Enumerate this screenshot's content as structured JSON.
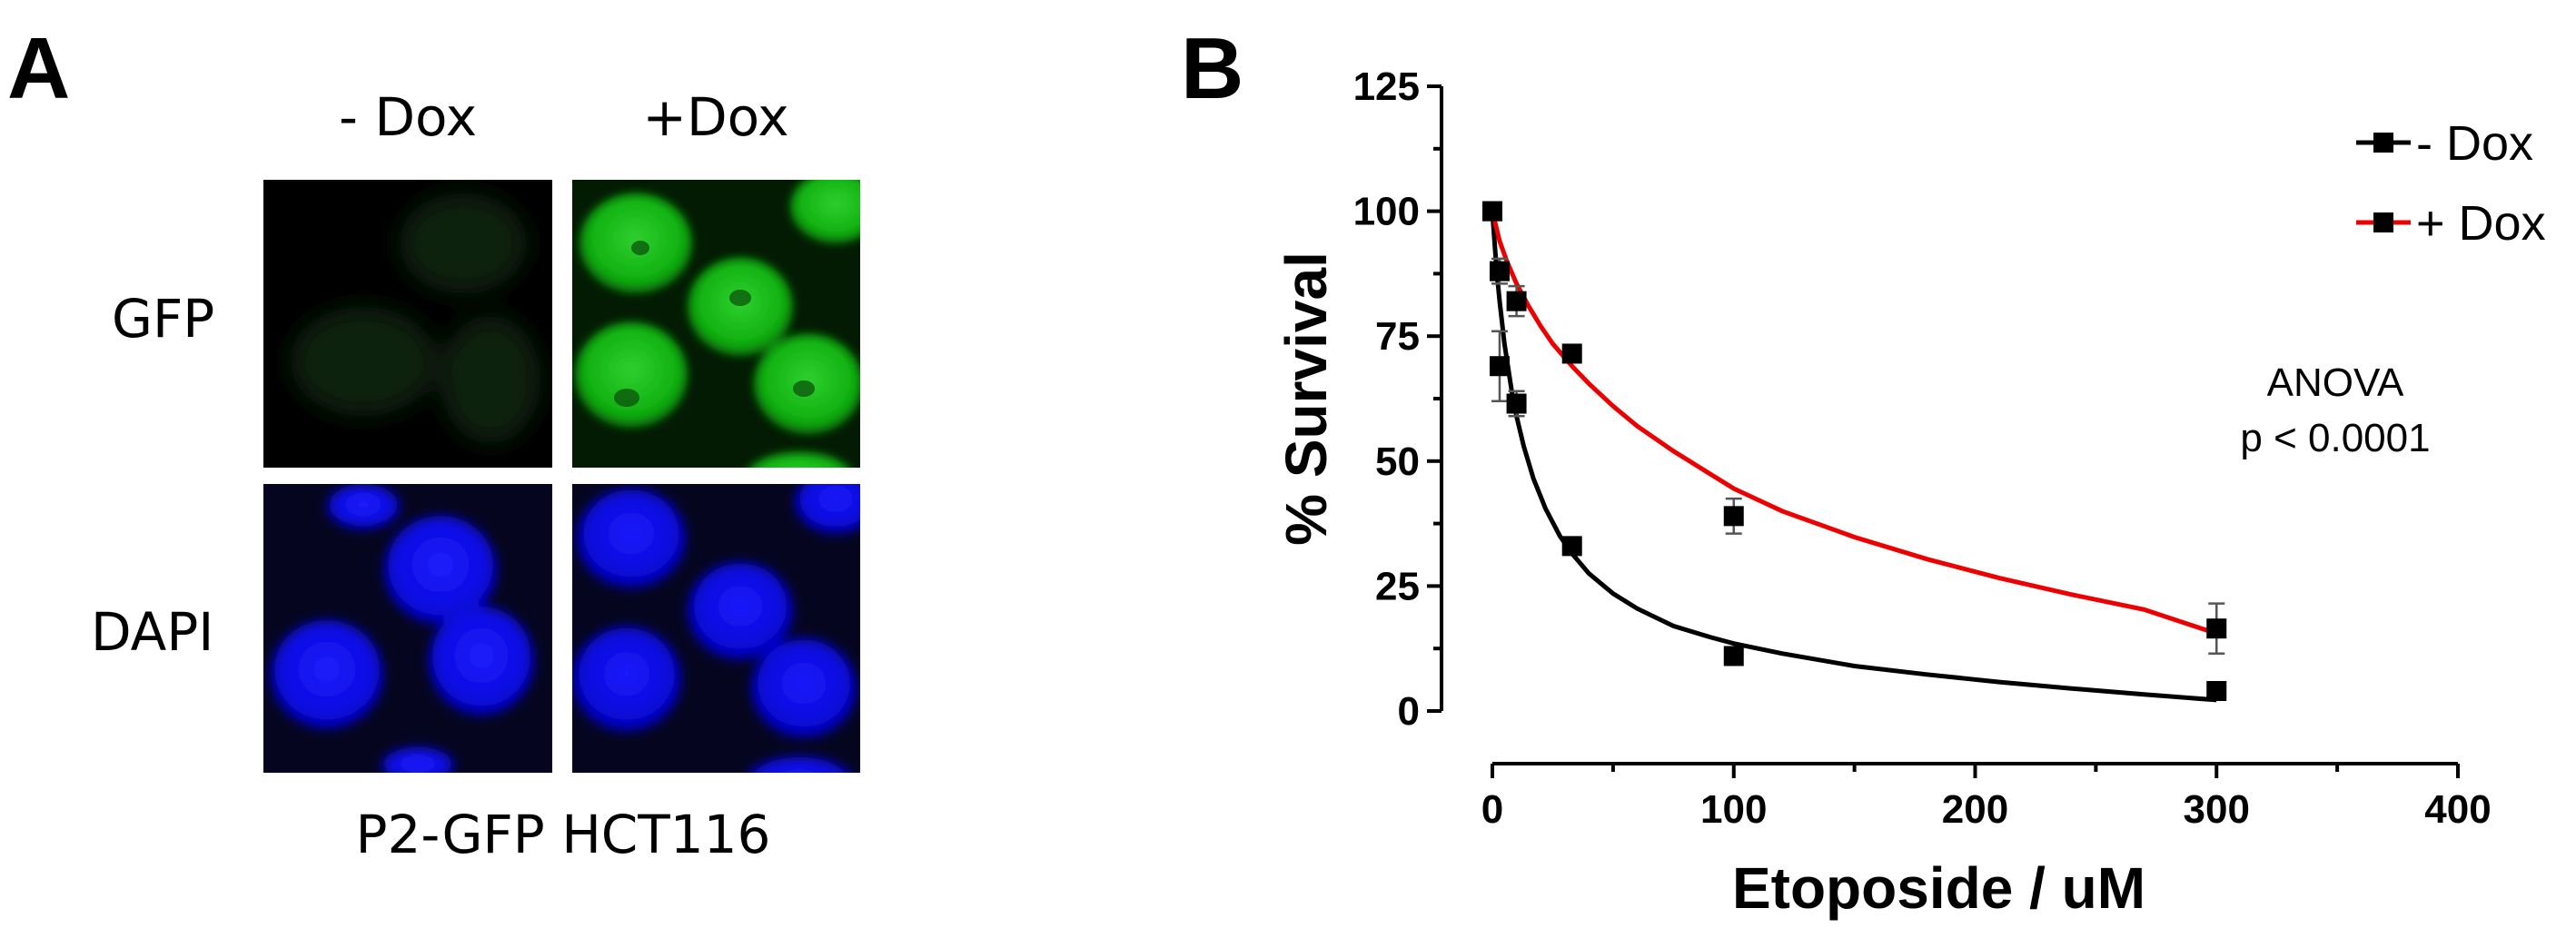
{
  "panel_a": {
    "letter": "A",
    "columns": [
      "- Dox",
      "+Dox"
    ],
    "rows": [
      "GFP",
      "DAPI"
    ],
    "caption": "P2-GFP HCT116",
    "colors": {
      "gfp": "#00c000",
      "dapi": "#0000e6",
      "background": "#000000"
    }
  },
  "panel_b": {
    "letter": "B"
  },
  "chart_data": {
    "type": "line",
    "xlabel": "Etoposide / uM",
    "ylabel": "% Survival",
    "xlim": [
      0,
      400
    ],
    "ylim": [
      0,
      125
    ],
    "x_ticks": [
      0,
      100,
      200,
      300,
      400
    ],
    "y_ticks": [
      0,
      25,
      50,
      75,
      100,
      125
    ],
    "grid": false,
    "legend_position": "top-right",
    "annotation": [
      "ANOVA",
      "p < 0.0001"
    ],
    "series": [
      {
        "name": "- Dox",
        "color": "#000000",
        "marker": "square",
        "points": [
          {
            "x": 0,
            "y": 100,
            "err": 1
          },
          {
            "x": 3,
            "y": 69,
            "err": 7
          },
          {
            "x": 10,
            "y": 61.5,
            "err": 2.5
          },
          {
            "x": 33,
            "y": 33,
            "err": 1
          },
          {
            "x": 100,
            "y": 11,
            "err": 1
          },
          {
            "x": 300,
            "y": 4,
            "err": 1
          }
        ],
        "fit": {
          "x": [
            0,
            1,
            2,
            3,
            5,
            8,
            10,
            13,
            17,
            22,
            28,
            33,
            40,
            50,
            60,
            75,
            90,
            100,
            120,
            150,
            180,
            210,
            240,
            270,
            300
          ],
          "y": [
            100,
            93,
            87,
            82,
            73.5,
            64,
            59,
            53,
            46.5,
            40.5,
            35,
            31.5,
            27.5,
            23.5,
            20.5,
            17,
            14.8,
            13.5,
            11.5,
            9,
            7.3,
            5.8,
            4.5,
            3.3,
            2.2
          ]
        }
      },
      {
        "name": "+ Dox",
        "color": "#ee0000",
        "marker": "square",
        "points": [
          {
            "x": 0,
            "y": 100,
            "err": 1
          },
          {
            "x": 3,
            "y": 88,
            "err": 2.5
          },
          {
            "x": 10,
            "y": 82,
            "err": 3
          },
          {
            "x": 33,
            "y": 71.5,
            "err": 1
          },
          {
            "x": 100,
            "y": 39,
            "err": 3.5
          },
          {
            "x": 300,
            "y": 16.5,
            "err": 5
          }
        ],
        "fit": {
          "x": [
            0,
            3,
            6,
            10,
            15,
            20,
            25,
            33,
            40,
            50,
            60,
            75,
            90,
            100,
            120,
            150,
            180,
            210,
            240,
            270,
            300
          ],
          "y": [
            100,
            94,
            90,
            85.5,
            81,
            77,
            73.5,
            69,
            65.5,
            61,
            57,
            52,
            47.5,
            44.5,
            40,
            34.8,
            30.4,
            26.6,
            23.3,
            20.3,
            15.5
          ]
        }
      }
    ]
  }
}
